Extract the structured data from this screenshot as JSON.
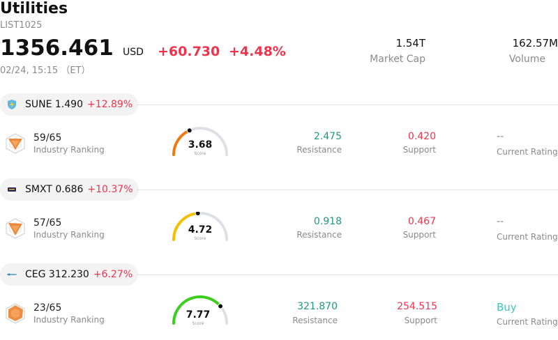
{
  "header": {
    "title": "Utilities",
    "code": "LIST1025",
    "price": "1356.461",
    "currency": "USD",
    "change": "+60.730",
    "change_pct": "+4.48%",
    "timestamp": "02/24, 15:15 （ET）",
    "market_cap_value": "1.54T",
    "market_cap_label": "Market Cap",
    "volume_value": "162.57M",
    "volume_label": "Volume"
  },
  "stocks": [
    {
      "ticker_line": "SUNE 1.490",
      "change_pct": "+12.89%",
      "logo_icon": "lightning-shield-icon",
      "rank": "59/65",
      "rank_label": "Industry Ranking",
      "score": "3.68",
      "score_value": 3.68,
      "score_label": "Score",
      "score_color": "#f07a10",
      "resistance": "2.475",
      "resistance_label": "Resistance",
      "support": "0.420",
      "support_label": "Support",
      "rating": "--",
      "rating_label": "Current Rating"
    },
    {
      "ticker_line": "SMXT 0.686",
      "change_pct": "+10.37%",
      "logo_icon": "smxt-logo-icon",
      "rank": "57/65",
      "rank_label": "Industry Ranking",
      "score": "4.72",
      "score_value": 4.72,
      "score_label": "Score",
      "score_color": "#f5c000",
      "resistance": "0.918",
      "resistance_label": "Resistance",
      "support": "0.467",
      "support_label": "Support",
      "rating": "--",
      "rating_label": "Current Rating"
    },
    {
      "ticker_line": "CEG 312.230",
      "change_pct": "+6.27%",
      "logo_icon": "constellation-logo-icon",
      "rank": "23/65",
      "rank_label": "Industry Ranking",
      "score": "7.77",
      "score_value": 7.77,
      "score_label": "Score",
      "score_color": "#3ccf20",
      "resistance": "321.870",
      "resistance_label": "Resistance",
      "support": "254.515",
      "support_label": "Support",
      "rating": "Buy",
      "rating_label": "Current Rating"
    }
  ]
}
